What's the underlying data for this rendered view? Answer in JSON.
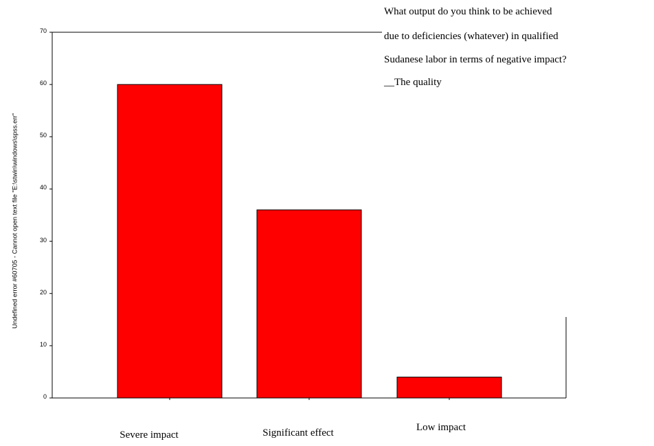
{
  "chart_data": {
    "type": "bar",
    "title_lines": [
      "What output do you think to be achieved",
      "due to deficiencies (whatever) in qualified",
      "Sudanese labor in terms of negative impact?",
      "__The quality"
    ],
    "ylabel": "Undefined error #60705 - Cannot open text file \"E:\\stwin\\windows\\spss.err\"",
    "xlabel": "",
    "categories": [
      "Severe impact",
      "Significant effect",
      "Low impact"
    ],
    "values": [
      60,
      36,
      4
    ],
    "y_ticks": [
      "0",
      "10",
      "20",
      "30",
      "40",
      "50",
      "60",
      "70"
    ],
    "ylim": [
      0,
      70
    ],
    "bar_color": "#ff0000",
    "grid": false,
    "legend": "none"
  }
}
